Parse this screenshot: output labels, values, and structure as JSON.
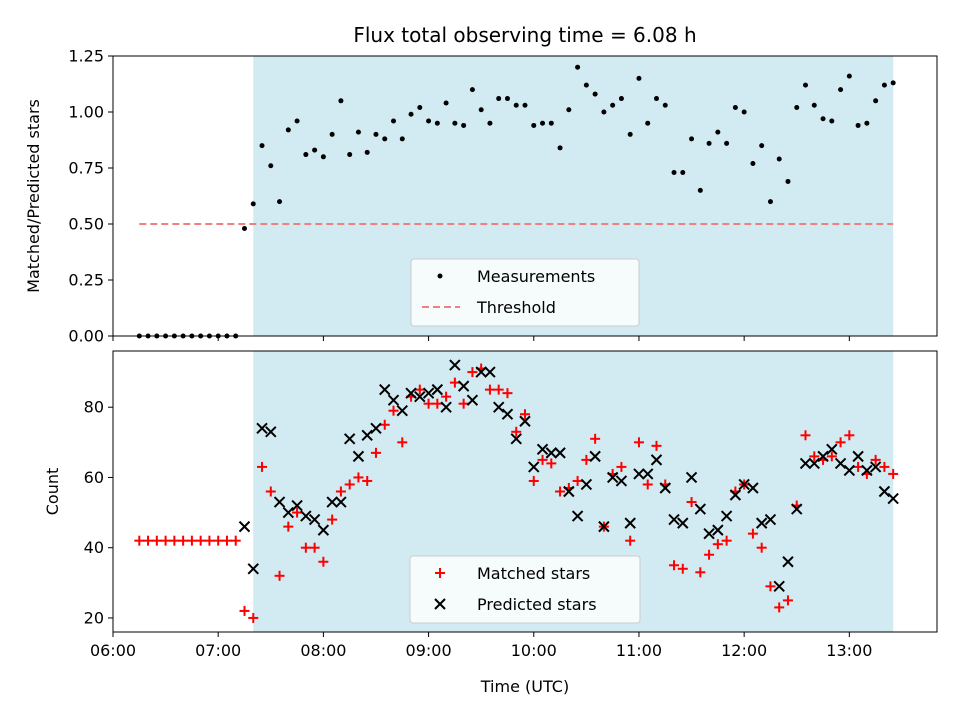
{
  "chart_data": [
    {
      "type": "scatter",
      "title": "Flux total observing time = 6.08 h",
      "xlabel": "",
      "ylabel": "Matched/Predicted stars",
      "xlim": [
        "06:00",
        "13:50"
      ],
      "ylim": [
        0,
        1.25
      ],
      "yticks": [
        "0.00",
        "0.25",
        "0.50",
        "0.75",
        "1.00",
        "1.25"
      ],
      "grid": false,
      "legend_position": "bottom-center",
      "shaded_region": {
        "start": "07:20",
        "end": "13:25",
        "color": "#add8e6"
      },
      "threshold": {
        "name": "Threshold",
        "value": 0.5,
        "start": "06:15",
        "end": "13:25",
        "color": "#f08080"
      },
      "series": [
        {
          "name": "Measurements",
          "color": "#000000",
          "marker": "dot",
          "points": [
            [
              "06:15",
              0
            ],
            [
              "06:20",
              0
            ],
            [
              "06:25",
              0
            ],
            [
              "06:30",
              0
            ],
            [
              "06:35",
              0
            ],
            [
              "06:40",
              0
            ],
            [
              "06:45",
              0
            ],
            [
              "06:50",
              0
            ],
            [
              "06:55",
              0
            ],
            [
              "07:00",
              0
            ],
            [
              "07:05",
              0
            ],
            [
              "07:10",
              0
            ],
            [
              "07:15",
              0.48
            ],
            [
              "07:20",
              0.59
            ],
            [
              "07:25",
              0.85
            ],
            [
              "07:30",
              0.76
            ],
            [
              "07:35",
              0.6
            ],
            [
              "07:40",
              0.92
            ],
            [
              "07:45",
              0.96
            ],
            [
              "07:50",
              0.81
            ],
            [
              "07:55",
              0.83
            ],
            [
              "08:00",
              0.8
            ],
            [
              "08:05",
              0.9
            ],
            [
              "08:10",
              1.05
            ],
            [
              "08:15",
              0.81
            ],
            [
              "08:20",
              0.91
            ],
            [
              "08:25",
              0.82
            ],
            [
              "08:30",
              0.9
            ],
            [
              "08:35",
              0.88
            ],
            [
              "08:40",
              0.96
            ],
            [
              "08:45",
              0.88
            ],
            [
              "08:50",
              0.99
            ],
            [
              "08:55",
              1.02
            ],
            [
              "09:00",
              0.96
            ],
            [
              "09:05",
              0.95
            ],
            [
              "09:10",
              1.04
            ],
            [
              "09:15",
              0.95
            ],
            [
              "09:20",
              0.94
            ],
            [
              "09:25",
              1.1
            ],
            [
              "09:30",
              1.01
            ],
            [
              "09:35",
              0.95
            ],
            [
              "09:40",
              1.06
            ],
            [
              "09:45",
              1.06
            ],
            [
              "09:50",
              1.03
            ],
            [
              "09:55",
              1.03
            ],
            [
              "10:00",
              0.94
            ],
            [
              "10:05",
              0.95
            ],
            [
              "10:10",
              0.95
            ],
            [
              "10:15",
              0.84
            ],
            [
              "10:20",
              1.01
            ],
            [
              "10:25",
              1.2
            ],
            [
              "10:30",
              1.12
            ],
            [
              "10:35",
              1.08
            ],
            [
              "10:40",
              1.0
            ],
            [
              "10:45",
              1.03
            ],
            [
              "10:50",
              1.06
            ],
            [
              "10:55",
              0.9
            ],
            [
              "11:00",
              1.15
            ],
            [
              "11:05",
              0.95
            ],
            [
              "11:10",
              1.06
            ],
            [
              "11:15",
              1.03
            ],
            [
              "11:20",
              0.73
            ],
            [
              "11:25",
              0.73
            ],
            [
              "11:30",
              0.88
            ],
            [
              "11:35",
              0.65
            ],
            [
              "11:40",
              0.86
            ],
            [
              "11:45",
              0.91
            ],
            [
              "11:50",
              0.86
            ],
            [
              "11:55",
              1.02
            ],
            [
              "12:00",
              1.0
            ],
            [
              "12:05",
              0.77
            ],
            [
              "12:10",
              0.85
            ],
            [
              "12:15",
              0.6
            ],
            [
              "12:20",
              0.79
            ],
            [
              "12:25",
              0.69
            ],
            [
              "12:30",
              1.02
            ],
            [
              "12:35",
              1.12
            ],
            [
              "12:40",
              1.03
            ],
            [
              "12:45",
              0.97
            ],
            [
              "12:50",
              0.96
            ],
            [
              "12:55",
              1.1
            ],
            [
              "13:00",
              1.16
            ],
            [
              "13:05",
              0.94
            ],
            [
              "13:10",
              0.95
            ],
            [
              "13:15",
              1.05
            ],
            [
              "13:20",
              1.12
            ],
            [
              "13:25",
              1.13
            ]
          ]
        }
      ]
    },
    {
      "type": "scatter",
      "title": "",
      "xlabel": "Time (UTC)",
      "ylabel": "Count",
      "xlim": [
        "06:00",
        "13:50"
      ],
      "xticks": [
        "06:00",
        "07:00",
        "08:00",
        "09:00",
        "10:00",
        "11:00",
        "12:00",
        "13:00"
      ],
      "ylim": [
        16,
        96
      ],
      "yticks": [
        "20",
        "40",
        "60",
        "80"
      ],
      "grid": false,
      "legend_position": "bottom-center",
      "shaded_region": {
        "start": "07:20",
        "end": "13:25",
        "color": "#add8e6"
      },
      "series": [
        {
          "name": "Matched stars",
          "color": "#ff0000",
          "marker": "plus",
          "points": [
            [
              "06:15",
              42
            ],
            [
              "06:20",
              42
            ],
            [
              "06:25",
              42
            ],
            [
              "06:30",
              42
            ],
            [
              "06:35",
              42
            ],
            [
              "06:40",
              42
            ],
            [
              "06:45",
              42
            ],
            [
              "06:50",
              42
            ],
            [
              "06:55",
              42
            ],
            [
              "07:00",
              42
            ],
            [
              "07:05",
              42
            ],
            [
              "07:10",
              42
            ],
            [
              "07:15",
              22
            ],
            [
              "07:20",
              20
            ],
            [
              "07:25",
              63
            ],
            [
              "07:30",
              56
            ],
            [
              "07:35",
              32
            ],
            [
              "07:40",
              46
            ],
            [
              "07:45",
              50
            ],
            [
              "07:50",
              40
            ],
            [
              "07:55",
              40
            ],
            [
              "08:00",
              36
            ],
            [
              "08:05",
              48
            ],
            [
              "08:10",
              56
            ],
            [
              "08:15",
              58
            ],
            [
              "08:20",
              60
            ],
            [
              "08:25",
              59
            ],
            [
              "08:30",
              67
            ],
            [
              "08:35",
              75
            ],
            [
              "08:40",
              79
            ],
            [
              "08:45",
              70
            ],
            [
              "08:50",
              83
            ],
            [
              "08:55",
              85
            ],
            [
              "09:00",
              81
            ],
            [
              "09:05",
              81
            ],
            [
              "09:10",
              83
            ],
            [
              "09:15",
              87
            ],
            [
              "09:20",
              81
            ],
            [
              "09:25",
              90
            ],
            [
              "09:30",
              91
            ],
            [
              "09:35",
              85
            ],
            [
              "09:40",
              85
            ],
            [
              "09:45",
              84
            ],
            [
              "09:50",
              73
            ],
            [
              "09:55",
              78
            ],
            [
              "10:00",
              59
            ],
            [
              "10:05",
              65
            ],
            [
              "10:10",
              64
            ],
            [
              "10:15",
              56
            ],
            [
              "10:20",
              57
            ],
            [
              "10:25",
              59
            ],
            [
              "10:30",
              65
            ],
            [
              "10:35",
              71
            ],
            [
              "10:40",
              46
            ],
            [
              "10:45",
              61
            ],
            [
              "10:50",
              63
            ],
            [
              "10:55",
              42
            ],
            [
              "11:00",
              70
            ],
            [
              "11:05",
              58
            ],
            [
              "11:10",
              69
            ],
            [
              "11:15",
              58
            ],
            [
              "11:20",
              35
            ],
            [
              "11:25",
              34
            ],
            [
              "11:30",
              53
            ],
            [
              "11:35",
              33
            ],
            [
              "11:40",
              38
            ],
            [
              "11:45",
              41
            ],
            [
              "11:50",
              42
            ],
            [
              "11:55",
              56
            ],
            [
              "12:00",
              58
            ],
            [
              "12:05",
              44
            ],
            [
              "12:10",
              40
            ],
            [
              "12:15",
              29
            ],
            [
              "12:20",
              23
            ],
            [
              "12:25",
              25
            ],
            [
              "12:30",
              52
            ],
            [
              "12:35",
              72
            ],
            [
              "12:40",
              66
            ],
            [
              "12:45",
              65
            ],
            [
              "12:50",
              66
            ],
            [
              "12:55",
              70
            ],
            [
              "13:00",
              72
            ],
            [
              "13:05",
              63
            ],
            [
              "13:10",
              61
            ],
            [
              "13:15",
              65
            ],
            [
              "13:20",
              63
            ],
            [
              "13:25",
              61
            ]
          ]
        },
        {
          "name": "Predicted stars",
          "color": "#000000",
          "marker": "x",
          "points": [
            [
              "07:15",
              46
            ],
            [
              "07:20",
              34
            ],
            [
              "07:25",
              74
            ],
            [
              "07:30",
              73
            ],
            [
              "07:35",
              53
            ],
            [
              "07:40",
              50
            ],
            [
              "07:45",
              52
            ],
            [
              "07:50",
              49
            ],
            [
              "07:55",
              48
            ],
            [
              "08:00",
              45
            ],
            [
              "08:05",
              53
            ],
            [
              "08:10",
              53
            ],
            [
              "08:15",
              71
            ],
            [
              "08:20",
              66
            ],
            [
              "08:25",
              72
            ],
            [
              "08:30",
              74
            ],
            [
              "08:35",
              85
            ],
            [
              "08:40",
              82
            ],
            [
              "08:45",
              79
            ],
            [
              "08:50",
              84
            ],
            [
              "08:55",
              83
            ],
            [
              "09:00",
              84
            ],
            [
              "09:05",
              85
            ],
            [
              "09:10",
              80
            ],
            [
              "09:15",
              92
            ],
            [
              "09:20",
              86
            ],
            [
              "09:25",
              82
            ],
            [
              "09:30",
              90
            ],
            [
              "09:35",
              90
            ],
            [
              "09:40",
              80
            ],
            [
              "09:45",
              78
            ],
            [
              "09:50",
              71
            ],
            [
              "09:55",
              76
            ],
            [
              "10:00",
              63
            ],
            [
              "10:05",
              68
            ],
            [
              "10:10",
              67
            ],
            [
              "10:15",
              67
            ],
            [
              "10:20",
              56
            ],
            [
              "10:25",
              49
            ],
            [
              "10:30",
              58
            ],
            [
              "10:35",
              66
            ],
            [
              "10:40",
              46
            ],
            [
              "10:45",
              60
            ],
            [
              "10:50",
              59
            ],
            [
              "10:55",
              47
            ],
            [
              "11:00",
              61
            ],
            [
              "11:05",
              61
            ],
            [
              "11:10",
              65
            ],
            [
              "11:15",
              57
            ],
            [
              "11:20",
              48
            ],
            [
              "11:25",
              47
            ],
            [
              "11:30",
              60
            ],
            [
              "11:35",
              51
            ],
            [
              "11:40",
              44
            ],
            [
              "11:45",
              45
            ],
            [
              "11:50",
              49
            ],
            [
              "11:55",
              55
            ],
            [
              "12:00",
              58
            ],
            [
              "12:05",
              57
            ],
            [
              "12:10",
              47
            ],
            [
              "12:15",
              48
            ],
            [
              "12:20",
              29
            ],
            [
              "12:25",
              36
            ],
            [
              "12:30",
              51
            ],
            [
              "12:35",
              64
            ],
            [
              "12:40",
              64
            ],
            [
              "12:45",
              66
            ],
            [
              "12:50",
              68
            ],
            [
              "12:55",
              64
            ],
            [
              "13:00",
              62
            ],
            [
              "13:05",
              66
            ],
            [
              "13:10",
              62
            ],
            [
              "13:15",
              63
            ],
            [
              "13:20",
              56
            ],
            [
              "13:25",
              54
            ]
          ]
        }
      ]
    }
  ]
}
